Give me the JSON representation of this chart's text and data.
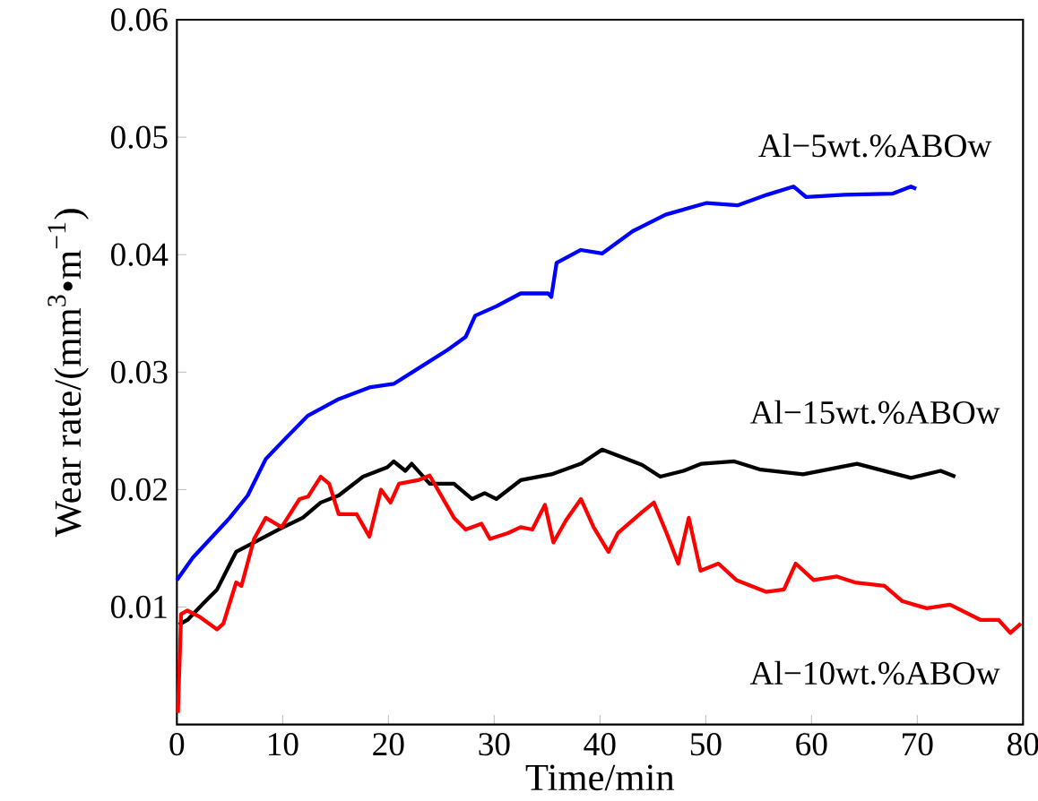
{
  "chart_data": {
    "type": "line",
    "xlabel": "Time/min",
    "ylabel": "Wear rate/(mm$^{3}$•m$^{−1}$)",
    "xlim": [
      0,
      80
    ],
    "ylim": [
      0,
      0.06
    ],
    "xticks": [
      0,
      10,
      20,
      30,
      40,
      50,
      60,
      70,
      80
    ],
    "yticks": [
      {
        "value": 0,
        "label": null
      },
      0.01,
      0.02,
      0.03,
      0.04,
      0.05,
      0.06
    ],
    "grid": false,
    "legend": false,
    "marker": "none",
    "line_style": "solid",
    "series": [
      {
        "name": "Al−5wt.%ABOw",
        "color": "#0000ff",
        "x": [
          0,
          1.5,
          5.0,
          6.7,
          8.4,
          10.1,
          12.4,
          15.3,
          18.2,
          20.5,
          22.8,
          25.6,
          27.3,
          28.2,
          30.2,
          32.5,
          35.1,
          35.4,
          35.9,
          38.2,
          40.2,
          43.1,
          46.2,
          50.1,
          53.0,
          55.8,
          58.3,
          59.5,
          63.1,
          67.7,
          69.4,
          69.9
        ],
        "values": [
          0.0123,
          0.0142,
          0.0176,
          0.0195,
          0.0226,
          0.0242,
          0.0263,
          0.0277,
          0.0287,
          0.029,
          0.0303,
          0.0319,
          0.033,
          0.0348,
          0.0356,
          0.0367,
          0.0367,
          0.0364,
          0.0393,
          0.0404,
          0.0401,
          0.042,
          0.0434,
          0.0444,
          0.0442,
          0.0451,
          0.0458,
          0.0449,
          0.0451,
          0.0452,
          0.0458,
          0.0456
        ]
      },
      {
        "name": "Al−15wt.%ABOw",
        "color": "#000000",
        "x": [
          0.2,
          1.0,
          2.7,
          3.8,
          5.6,
          7.3,
          9.6,
          11.9,
          13.6,
          15.3,
          17.6,
          19.9,
          20.5,
          21.6,
          22.2,
          23.9,
          26.2,
          27.9,
          29.1,
          30.2,
          32.5,
          35.4,
          38.2,
          40.2,
          41.7,
          44.0,
          45.7,
          47.9,
          49.6,
          52.7,
          55.2,
          59.2,
          64.3,
          69.4,
          72.2,
          73.6
        ],
        "values": [
          0.0085,
          0.0089,
          0.0105,
          0.0115,
          0.0147,
          0.0155,
          0.0166,
          0.0176,
          0.0189,
          0.0195,
          0.0211,
          0.0219,
          0.0224,
          0.0216,
          0.0222,
          0.0205,
          0.0205,
          0.0192,
          0.0197,
          0.0192,
          0.0208,
          0.0213,
          0.0222,
          0.0234,
          0.0229,
          0.0221,
          0.0211,
          0.0216,
          0.0222,
          0.0224,
          0.0217,
          0.0213,
          0.0222,
          0.021,
          0.0216,
          0.0211
        ]
      },
      {
        "name": "Al−10wt.%ABOw",
        "color": "#ff0000",
        "x": [
          0.1,
          0.4,
          1.0,
          2.1,
          3.8,
          4.4,
          5.6,
          6.1,
          7.3,
          8.4,
          9.9,
          11.6,
          12.4,
          13.6,
          14.4,
          15.3,
          17.0,
          18.2,
          19.3,
          20.2,
          21.0,
          22.8,
          23.9,
          26.2,
          27.3,
          28.8,
          29.6,
          31.3,
          32.5,
          33.6,
          34.8,
          35.6,
          36.8,
          38.2,
          39.4,
          40.8,
          41.7,
          44.0,
          45.1,
          46.3,
          47.4,
          48.4,
          49.5,
          51.2,
          52.9,
          55.7,
          57.4,
          58.5,
          60.2,
          62.4,
          64.1,
          66.9,
          68.6,
          70.9,
          73.1,
          76.0,
          77.7,
          78.8,
          79.8
        ],
        "values": [
          0.001,
          0.0094,
          0.0097,
          0.0092,
          0.0081,
          0.0086,
          0.0121,
          0.0118,
          0.0158,
          0.0176,
          0.0168,
          0.0192,
          0.0194,
          0.0211,
          0.0205,
          0.0179,
          0.0179,
          0.016,
          0.02,
          0.0189,
          0.0205,
          0.0208,
          0.0212,
          0.0176,
          0.0166,
          0.0171,
          0.0158,
          0.0163,
          0.0168,
          0.0166,
          0.0187,
          0.0155,
          0.0174,
          0.0192,
          0.0168,
          0.0147,
          0.0163,
          0.0181,
          0.0189,
          0.0163,
          0.0137,
          0.0176,
          0.0131,
          0.0137,
          0.0123,
          0.0113,
          0.0115,
          0.0137,
          0.0123,
          0.0126,
          0.0121,
          0.0118,
          0.0105,
          0.0099,
          0.0102,
          0.0089,
          0.0089,
          0.0078,
          0.0086
        ]
      }
    ]
  }
}
